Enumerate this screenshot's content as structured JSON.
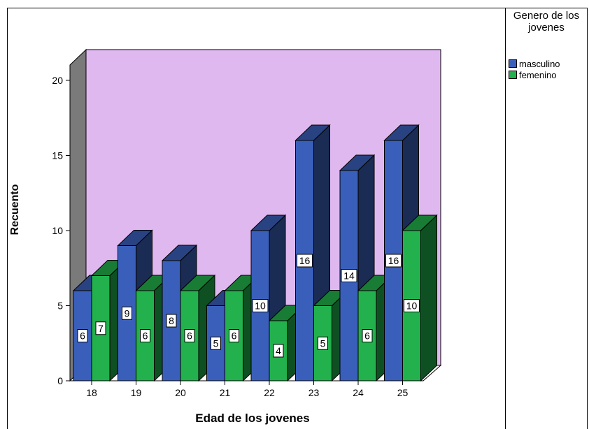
{
  "chart_data": {
    "type": "bar",
    "xlabel": "Edad de los jovenes",
    "ylabel": "Recuento",
    "categories": [
      "18",
      "19",
      "20",
      "21",
      "22",
      "23",
      "24",
      "25"
    ],
    "series": [
      {
        "name": "masculino",
        "color": "#3a5fba",
        "values": [
          6,
          9,
          8,
          5,
          10,
          16,
          14,
          16
        ]
      },
      {
        "name": "femenino",
        "color": "#22b14c",
        "values": [
          7,
          6,
          6,
          6,
          4,
          5,
          6,
          10
        ]
      }
    ],
    "ylim": [
      0,
      20
    ],
    "yticks": [
      0,
      5,
      10,
      15,
      20
    ],
    "legend_title": "Genero de los jovenes",
    "legend_position": "right",
    "plot_background": "#e0b8f0",
    "three_d": true
  }
}
